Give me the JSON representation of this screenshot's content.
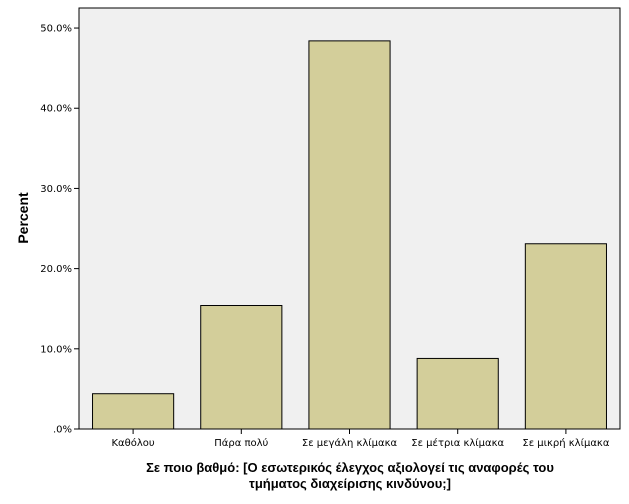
{
  "chart_data": {
    "type": "bar",
    "categories": [
      "Καθόλου",
      "Πάρα πολύ",
      "Σε μεγάλη κλίμακα",
      "Σε μέτρια κλίμακα",
      "Σε μικρή κλίμακα"
    ],
    "values": [
      4.4,
      15.4,
      48.4,
      8.8,
      23.1
    ],
    "title": "",
    "xlabel_lines": [
      "Σε ποιο βαθμό:  [Ο εσωτερικός έλεγχος αξιολογεί τις αναφορές του",
      "τμήματος διαχείρισης κινδύνου;]"
    ],
    "ylabel": "Percent",
    "ylim": [
      0,
      52.5
    ],
    "yticks": [
      0,
      10,
      20,
      30,
      40,
      50
    ],
    "ytick_labels": [
      ".0%",
      "10.0%",
      "20.0%",
      "30.0%",
      "40.0%",
      "50.0%"
    ],
    "grid": false,
    "legend": "none",
    "colors": {
      "plot_background": "#f0f0f0",
      "bar_fill": "#d3ce9a",
      "bar_stroke": "#000000",
      "axis": "#000000"
    }
  }
}
